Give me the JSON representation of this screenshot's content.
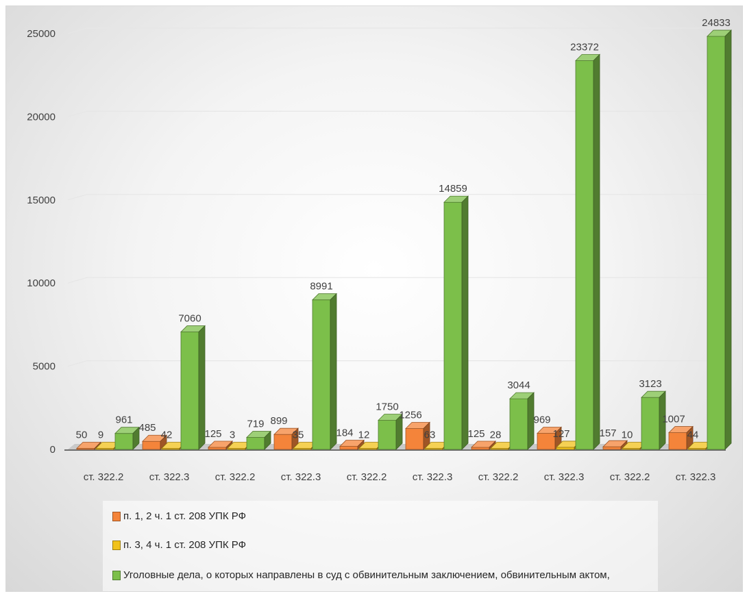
{
  "chart_data": {
    "type": "bar",
    "categories": [
      "ст. 322.2",
      "ст. 322.3",
      "ст. 322.2",
      "ст. 322.3",
      "ст. 322.2",
      "ст. 322.3",
      "ст. 322.2",
      "ст. 322.3",
      "ст. 322.2",
      "ст. 322.3"
    ],
    "series": [
      {
        "name": "п. 1, 2 ч. 1 ст. 208 УПК РФ",
        "color": "#f4843a",
        "values": [
          50,
          485,
          125,
          899,
          184,
          1256,
          125,
          969,
          157,
          1007
        ],
        "labels": [
          "50",
          "485",
          "125",
          "899",
          "184",
          "1256",
          "125",
          "969",
          "157",
          "1007"
        ]
      },
      {
        "name": "п. 3, 4 ч. 1 ст. 208 УПК РФ",
        "color": "#f1c21b",
        "values": [
          9,
          42,
          3,
          35,
          12,
          63,
          28,
          127,
          10,
          44
        ],
        "labels": [
          "9",
          "42",
          "3",
          "35",
          "12",
          "63",
          "28",
          "127",
          "10",
          "44"
        ]
      },
      {
        "name": "Уголовные дела, о которых направлены в суд с обвинительным заключением, обвинительным актом,",
        "color": "#7cbf4a",
        "values": [
          961,
          7060,
          719,
          8991,
          1750,
          14859,
          3044,
          23372,
          3123,
          24833
        ],
        "labels": [
          "961",
          "7060",
          "719",
          "8991",
          "1750",
          "14859",
          "3044",
          "23372",
          "3123",
          "24833"
        ]
      }
    ],
    "yticks": [
      "0",
      "5000",
      "10000",
      "15000",
      "20000",
      "25000"
    ],
    "ylim": [
      0,
      26000
    ],
    "legend_position": "bottom",
    "grid": true
  }
}
